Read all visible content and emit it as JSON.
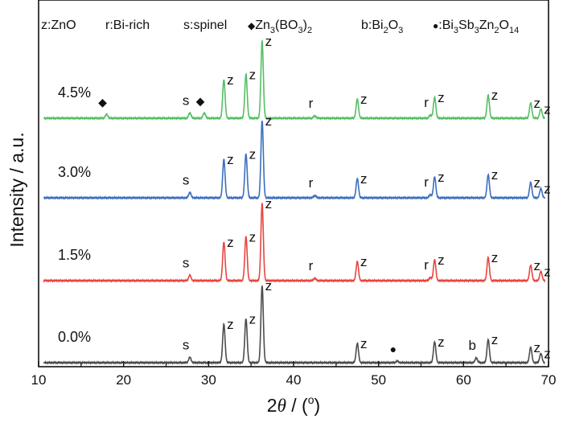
{
  "chart_data": {
    "type": "line",
    "xlabel_prefix": "2",
    "xlabel_theta": "θ",
    "xlabel_unit_open": " / (",
    "xlabel_unit_deg": "o",
    "xlabel_unit_close": ")",
    "ylabel": "Intensity / a.u.",
    "xlim": [
      10,
      70
    ],
    "xticks": [
      "10",
      "20",
      "30",
      "40",
      "50",
      "60",
      "70"
    ],
    "grid": false,
    "legend_items": [
      {
        "text": "z:ZnO"
      },
      {
        "text": "r:Bi-rich"
      },
      {
        "text": "s:spinel"
      },
      {
        "marker": "◆",
        "parts": [
          [
            "Zn",
            ""
          ],
          [
            "3",
            "sub"
          ],
          [
            "(BO",
            ""
          ],
          [
            "3",
            "sub"
          ],
          [
            ")",
            ""
          ],
          [
            "2",
            "sub"
          ]
        ]
      },
      {
        "parts": [
          [
            "b:Bi",
            ""
          ],
          [
            "2",
            "sub"
          ],
          [
            "O",
            ""
          ],
          [
            "3",
            "sub"
          ]
        ]
      },
      {
        "marker": "●",
        "parts": [
          [
            ":Bi",
            ""
          ],
          [
            "3",
            "sub"
          ],
          [
            "Sb",
            ""
          ],
          [
            "3",
            "sub"
          ],
          [
            "Zn",
            ""
          ],
          [
            "2",
            "sub"
          ],
          [
            "O",
            ""
          ],
          [
            "14",
            "sub"
          ]
        ]
      }
    ],
    "peaks": [
      {
        "x": 18.0,
        "label": "◆",
        "series": [
          3
        ],
        "h": 0.05
      },
      {
        "x": 27.8,
        "label": "s",
        "series": [
          0,
          1,
          2,
          3
        ],
        "h": 0.07
      },
      {
        "x": 29.5,
        "label": "◆",
        "series": [
          3
        ],
        "h": 0.07
      },
      {
        "x": 31.8,
        "label": "z",
        "series": [
          0,
          1,
          2,
          3
        ],
        "h": 0.5
      },
      {
        "x": 34.4,
        "label": "z",
        "series": [
          0,
          1,
          2,
          3
        ],
        "h": 0.57
      },
      {
        "x": 36.3,
        "label": "z",
        "series": [
          0,
          1,
          2,
          3
        ],
        "h": 1.0
      },
      {
        "x": 42.5,
        "label": "r",
        "series": [
          1,
          2,
          3
        ],
        "h": 0.03
      },
      {
        "x": 47.5,
        "label": "z",
        "series": [
          0,
          1,
          2,
          3
        ],
        "h": 0.25
      },
      {
        "x": 52.2,
        "label": "●",
        "series": [
          0
        ],
        "h": 0.02
      },
      {
        "x": 56.1,
        "label": "r",
        "series": [
          1,
          2,
          3
        ],
        "h": 0.04
      },
      {
        "x": 56.6,
        "label": "z",
        "series": [
          0,
          1,
          2,
          3
        ],
        "h": 0.27
      },
      {
        "x": 61.5,
        "label": "b",
        "series": [
          0
        ],
        "h": 0.06
      },
      {
        "x": 62.9,
        "label": "z",
        "series": [
          0,
          1,
          2,
          3
        ],
        "h": 0.3
      },
      {
        "x": 67.9,
        "label": "z",
        "series": [
          0,
          1,
          2,
          3
        ],
        "h": 0.2
      },
      {
        "x": 69.1,
        "label": "z",
        "series": [
          0,
          1,
          2,
          3
        ],
        "h": 0.12
      }
    ],
    "series": [
      {
        "name": "0.0%",
        "color": "#4d4d4d"
      },
      {
        "name": "1.5%",
        "color": "#e8463f"
      },
      {
        "name": "3.0%",
        "color": "#3d6fbf"
      },
      {
        "name": "4.5%",
        "color": "#56bf63"
      }
    ]
  }
}
